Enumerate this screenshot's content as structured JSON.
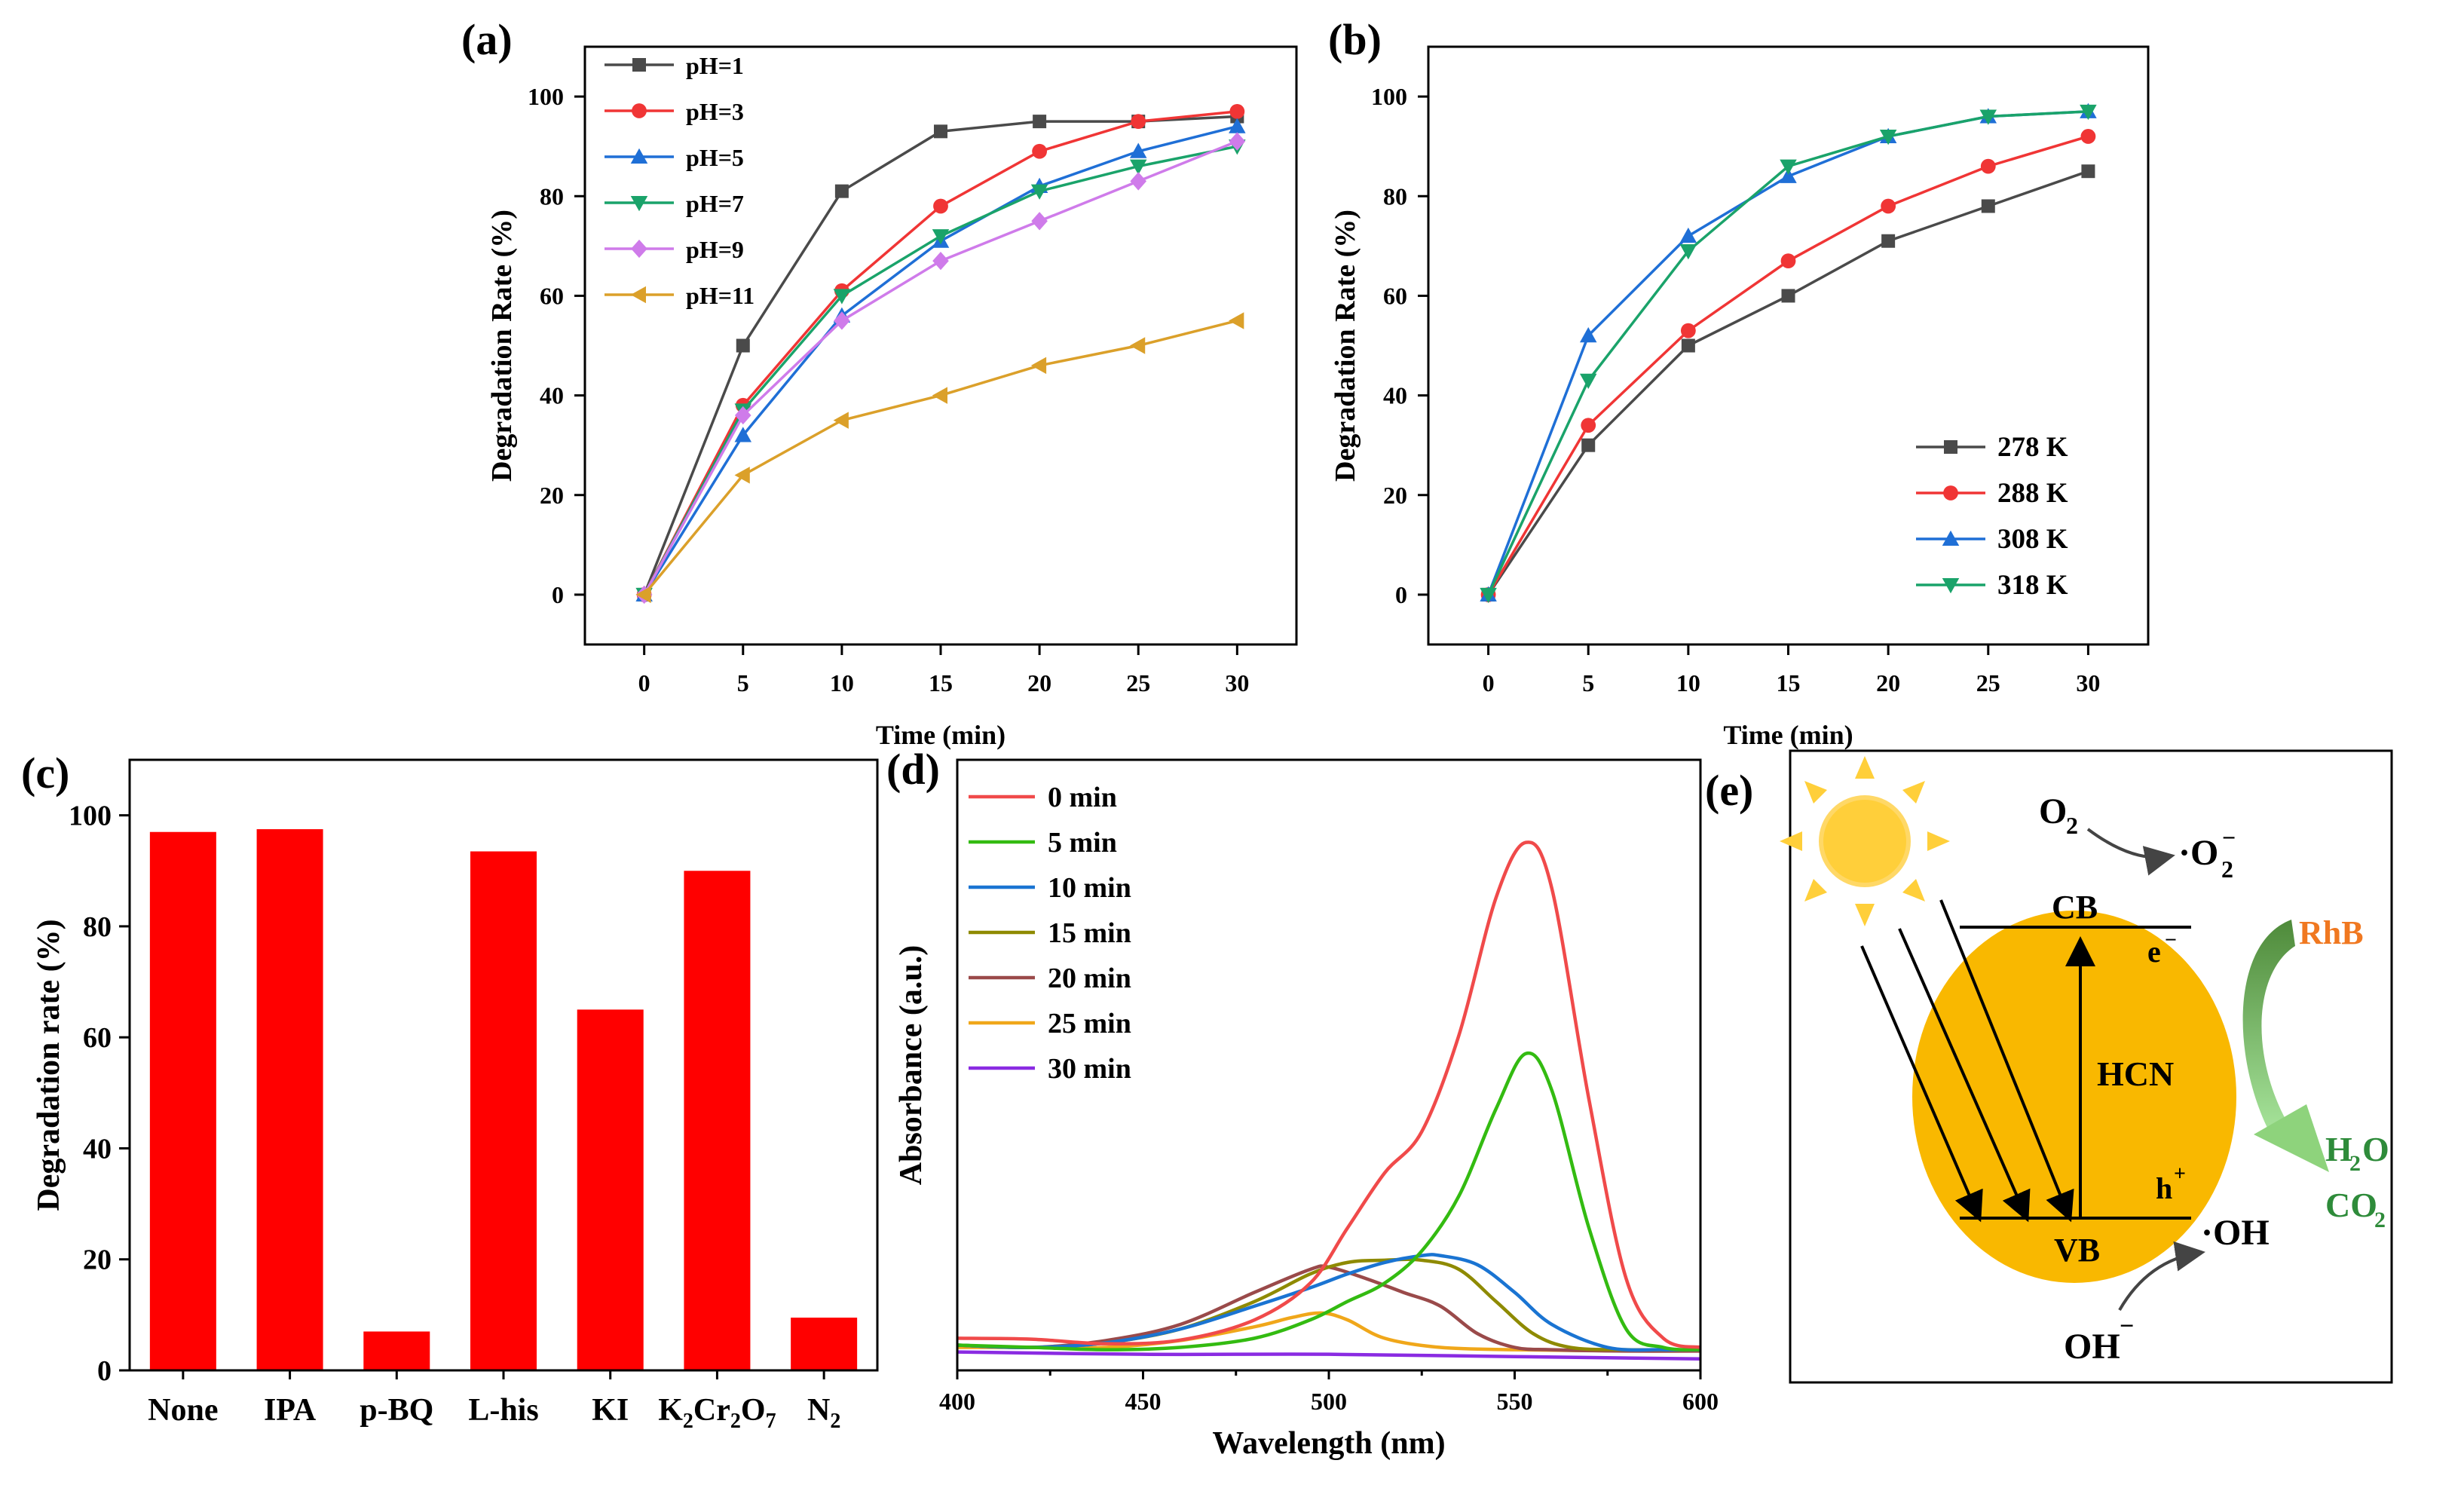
{
  "panels": {
    "a": {
      "label": "(a)"
    },
    "b": {
      "label": "(b)"
    },
    "c": {
      "label": "(c)"
    },
    "d": {
      "label": "(d)"
    },
    "e": {
      "label": "(e)"
    }
  },
  "chart_data": [
    {
      "id": "a",
      "type": "line",
      "title": "",
      "xlabel": "Time (min)",
      "ylabel": "Degradation Rate (%)",
      "xlim": [
        -3,
        33
      ],
      "ylim": [
        -10,
        110
      ],
      "xticks": [
        0,
        5,
        10,
        15,
        20,
        25,
        30
      ],
      "yticks": [
        0,
        20,
        40,
        60,
        80,
        100
      ],
      "x": [
        0,
        5,
        10,
        15,
        20,
        25,
        30
      ],
      "legend_position": "top-left",
      "series": [
        {
          "name": "pH=1",
          "color": "#4a4a4a",
          "marker": "square",
          "values": [
            0,
            50,
            81,
            93,
            95,
            95,
            96
          ]
        },
        {
          "name": "pH=3",
          "color": "#f03535",
          "marker": "circle",
          "values": [
            0,
            38,
            61,
            78,
            89,
            95,
            97
          ]
        },
        {
          "name": "pH=5",
          "color": "#1f6fd6",
          "marker": "triangle-up",
          "values": [
            0,
            32,
            56,
            71,
            82,
            89,
            94
          ]
        },
        {
          "name": "pH=7",
          "color": "#1aa36a",
          "marker": "triangle-down",
          "values": [
            0,
            37,
            60,
            72,
            81,
            86,
            90
          ]
        },
        {
          "name": "pH=9",
          "color": "#cf7bea",
          "marker": "diamond",
          "values": [
            0,
            36,
            55,
            67,
            75,
            83,
            91
          ]
        },
        {
          "name": "pH=11",
          "color": "#dba02a",
          "marker": "triangle-left",
          "values": [
            0,
            24,
            35,
            40,
            46,
            50,
            55
          ]
        }
      ]
    },
    {
      "id": "b",
      "type": "line",
      "title": "",
      "xlabel": "Time (min)",
      "ylabel": "Degradation Rate (%)",
      "xlim": [
        -3,
        33
      ],
      "ylim": [
        -10,
        110
      ],
      "xticks": [
        0,
        5,
        10,
        15,
        20,
        25,
        30
      ],
      "yticks": [
        0,
        20,
        40,
        60,
        80,
        100
      ],
      "x": [
        0,
        5,
        10,
        15,
        20,
        25,
        30
      ],
      "legend_position": "bottom-right",
      "series": [
        {
          "name": "278 K",
          "color": "#4a4a4a",
          "marker": "square",
          "values": [
            0,
            30,
            50,
            60,
            71,
            78,
            85
          ]
        },
        {
          "name": "288 K",
          "color": "#f03535",
          "marker": "circle",
          "values": [
            0,
            34,
            53,
            67,
            78,
            86,
            92
          ]
        },
        {
          "name": "308 K",
          "color": "#1f6fd6",
          "marker": "triangle-up",
          "values": [
            0,
            52,
            72,
            84,
            92,
            96,
            97
          ]
        },
        {
          "name": "318 K",
          "color": "#1aa36a",
          "marker": "triangle-down",
          "values": [
            0,
            43,
            69,
            86,
            92,
            96,
            97
          ]
        }
      ]
    },
    {
      "id": "c",
      "type": "bar",
      "title": "",
      "xlabel": "",
      "ylabel": "Degradation rate (%)",
      "ylim": [
        0,
        110
      ],
      "yticks": [
        0,
        20,
        40,
        60,
        80,
        100
      ],
      "categories": [
        "None",
        "IPA",
        "p-BQ",
        "L-his",
        "KI",
        "K2Cr2O7",
        "N2"
      ],
      "values": [
        97,
        97.5,
        7,
        93.5,
        65,
        90,
        9.5
      ],
      "color": "#ff0000"
    },
    {
      "id": "d",
      "type": "line",
      "title": "",
      "xlabel": "Wavelength (nm)",
      "ylabel": "Absorbance (a.u.)",
      "xlim": [
        400,
        600
      ],
      "ylim": [
        0.05,
        1.38
      ],
      "xticks": [
        400,
        450,
        500,
        550,
        600
      ],
      "legend_position": "top-left",
      "series": [
        {
          "name": "0 min",
          "color": "#f04a4a",
          "x": [
            400,
            420,
            440,
            460,
            480,
            495,
            505,
            515,
            525,
            535,
            545,
            553,
            560,
            570,
            580,
            590,
            600
          ],
          "values": [
            0.12,
            0.118,
            0.108,
            0.116,
            0.16,
            0.24,
            0.36,
            0.48,
            0.57,
            0.78,
            1.08,
            1.2,
            1.1,
            0.64,
            0.25,
            0.12,
            0.1
          ]
        },
        {
          "name": "5 min",
          "color": "#33bb11",
          "x": [
            400,
            420,
            440,
            460,
            480,
            495,
            505,
            515,
            525,
            535,
            545,
            553,
            560,
            570,
            580,
            590,
            600
          ],
          "values": [
            0.105,
            0.1,
            0.095,
            0.1,
            0.12,
            0.16,
            0.2,
            0.24,
            0.31,
            0.43,
            0.62,
            0.74,
            0.66,
            0.36,
            0.14,
            0.1,
            0.095
          ]
        },
        {
          "name": "10 min",
          "color": "#1a74d2",
          "x": [
            400,
            420,
            440,
            460,
            480,
            495,
            505,
            515,
            525,
            530,
            540,
            550,
            560,
            575,
            590,
            600
          ],
          "values": [
            0.105,
            0.1,
            0.11,
            0.14,
            0.19,
            0.23,
            0.26,
            0.285,
            0.3,
            0.3,
            0.28,
            0.22,
            0.15,
            0.1,
            0.095,
            0.095
          ]
        },
        {
          "name": "15 min",
          "color": "#8e8a00",
          "x": [
            400,
            420,
            440,
            460,
            480,
            495,
            505,
            515,
            525,
            535,
            545,
            555,
            565,
            580,
            600
          ],
          "values": [
            0.105,
            0.1,
            0.11,
            0.14,
            0.2,
            0.26,
            0.285,
            0.29,
            0.29,
            0.27,
            0.2,
            0.13,
            0.1,
            0.095,
            0.095
          ]
        },
        {
          "name": "20 min",
          "color": "#9a4a4a",
          "x": [
            400,
            420,
            440,
            460,
            480,
            495,
            500,
            510,
            520,
            530,
            540,
            550,
            560,
            580,
            600
          ],
          "values": [
            0.105,
            0.1,
            0.115,
            0.15,
            0.22,
            0.27,
            0.275,
            0.25,
            0.22,
            0.19,
            0.13,
            0.1,
            0.095,
            0.092,
            0.092
          ]
        },
        {
          "name": "25 min",
          "color": "#f0a71a",
          "x": [
            400,
            420,
            440,
            460,
            480,
            490,
            498,
            505,
            515,
            530,
            550,
            575,
            600
          ],
          "values": [
            0.1,
            0.1,
            0.1,
            0.115,
            0.145,
            0.165,
            0.175,
            0.16,
            0.12,
            0.1,
            0.095,
            0.093,
            0.093
          ]
        },
        {
          "name": "30 min",
          "color": "#8a2be2",
          "x": [
            400,
            450,
            500,
            550,
            600
          ],
          "values": [
            0.09,
            0.085,
            0.085,
            0.08,
            0.075
          ]
        }
      ]
    }
  ],
  "diagram_e": {
    "o2": "O",
    "o2_sub": "2",
    "superoxide": "·O",
    "superoxide_sub": "2",
    "superoxide_sup": "−",
    "cb": "CB",
    "vb": "VB",
    "electron": "e",
    "electron_sup": "−",
    "hole": "h",
    "hole_sup": "+",
    "semiconductor": "HCN",
    "rhb": "RhB",
    "h2o": "H",
    "h2o_sub": "2",
    "h2o_tail": "O",
    "co2": "CO",
    "co2_sub": "2",
    "hydroxyl_radical": "·OH",
    "hydroxide": "OH",
    "hydroxide_sup": "−",
    "colors": {
      "particle": "#f9b800",
      "rhb_text": "#f07820",
      "products_text": "#2e8b3a",
      "sun": "#ffcf3a"
    }
  },
  "c_tick_label_parts": {
    "k2cr2o7": [
      "K",
      "2",
      "Cr",
      "2",
      "O",
      "7"
    ],
    "n2": [
      "N",
      "2"
    ]
  }
}
